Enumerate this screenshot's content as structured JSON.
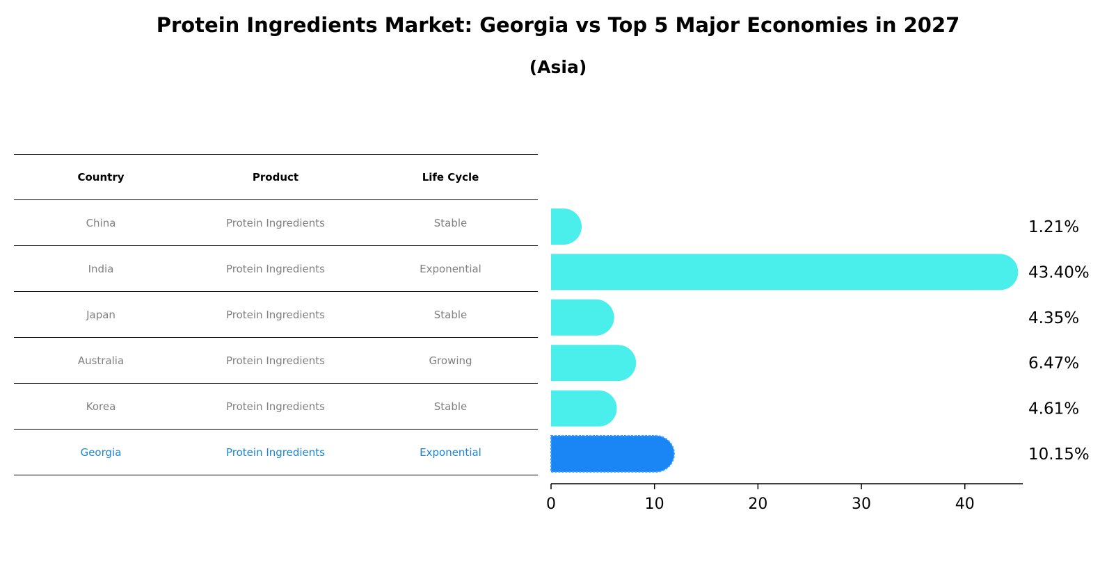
{
  "header": {
    "title": "Protein Ingredients Market: Georgia vs Top 5 Major Economies in 2027",
    "subtitle": "(Asia)"
  },
  "table": {
    "columns": [
      "Country",
      "Product",
      "Life Cycle"
    ],
    "rows": [
      {
        "country": "China",
        "product": "Protein Ingredients",
        "life_cycle": "Stable"
      },
      {
        "country": "India",
        "product": "Protein Ingredients",
        "life_cycle": "Exponential"
      },
      {
        "country": "Japan",
        "product": "Protein Ingredients",
        "life_cycle": "Stable"
      },
      {
        "country": "Australia",
        "product": "Protein Ingredients",
        "life_cycle": "Growing"
      },
      {
        "country": "Korea",
        "product": "Protein Ingredients",
        "life_cycle": "Stable"
      },
      {
        "country": "Georgia",
        "product": "Protein Ingredients",
        "life_cycle": "Exponential"
      }
    ]
  },
  "colors": {
    "bar": "#4aeeea",
    "highlight_bar": "#1a85f5",
    "highlight_text": "#1a85d6",
    "muted_text": "#808080"
  },
  "chart_data": {
    "type": "bar",
    "orientation": "horizontal",
    "title": "Protein Ingredients Market: Georgia vs Top 5 Major Economies in 2027",
    "subtitle": "(Asia)",
    "categories": [
      "China",
      "India",
      "Japan",
      "Australia",
      "Korea",
      "Georgia"
    ],
    "values": [
      1.21,
      43.4,
      4.35,
      6.47,
      4.61,
      10.15
    ],
    "value_labels": [
      "1.21%",
      "43.40%",
      "4.35%",
      "6.47%",
      "4.61%",
      "10.15%"
    ],
    "highlight": "Georgia",
    "xlim": [
      0,
      45.6
    ],
    "xticks": [
      0,
      10,
      20,
      30,
      40
    ],
    "xlabel": "",
    "ylabel": "",
    "grid": false
  }
}
